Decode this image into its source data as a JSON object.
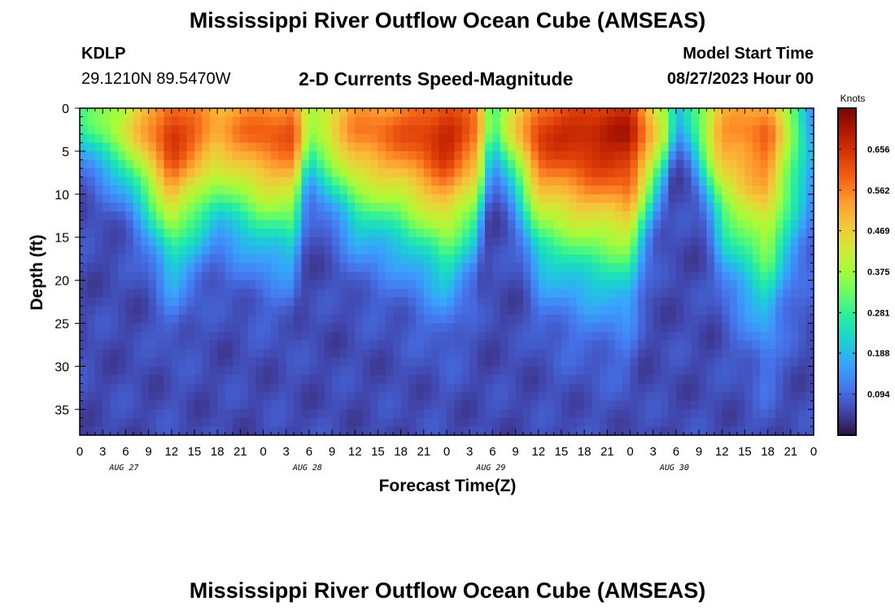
{
  "header": {
    "title": "Mississippi River Outflow Ocean Cube (AMSEAS)",
    "station": "KDLP",
    "location": "29.1210N  89.5470W",
    "product": "2-D Currents Speed-Magnitude",
    "model_label": "Model Start Time",
    "model_time": "08/27/2023 Hour 00"
  },
  "footer": {
    "title": "Mississippi River Outflow Ocean Cube (AMSEAS)"
  },
  "chart_data": {
    "type": "heatmap",
    "xlabel": "Forecast Time(Z)",
    "ylabel": "Depth (ft)",
    "x_tick_labels": [
      "0",
      "3",
      "6",
      "9",
      "12",
      "15",
      "18",
      "21",
      "0",
      "3",
      "6",
      "9",
      "12",
      "15",
      "18",
      "21",
      "0",
      "3",
      "6",
      "9",
      "12",
      "15",
      "18",
      "21",
      "0",
      "3",
      "6",
      "9",
      "12",
      "15",
      "18",
      "21",
      "0"
    ],
    "date_labels": [
      "AUG 27",
      "AUG 28",
      "AUG 29",
      "AUG 30"
    ],
    "x_range_hours": [
      0,
      96
    ],
    "y_ticks": [
      0,
      5,
      10,
      15,
      20,
      25,
      30,
      35
    ],
    "y_range": [
      0,
      38
    ],
    "colorbar": {
      "title": "Knots",
      "ticks": [
        "0.656",
        "0.562",
        "0.469",
        "0.375",
        "0.281",
        "0.188",
        "0.094"
      ],
      "range": [
        0,
        0.75
      ],
      "colors": [
        "#30123b",
        "#4145ab",
        "#4675ed",
        "#39a2fc",
        "#1bcfd4",
        "#24eca6",
        "#61fc6c",
        "#a4fc3b",
        "#d1e834",
        "#f3c63a",
        "#fe9b2d",
        "#f36315",
        "#d93806",
        "#b11901",
        "#7a0402"
      ]
    },
    "surface_speed_profile": {
      "hours": [
        0,
        6,
        12,
        18,
        24,
        28,
        30,
        36,
        42,
        48,
        52,
        54,
        60,
        66,
        72,
        77,
        78,
        84,
        90,
        96
      ],
      "values": [
        0.3,
        0.45,
        0.68,
        0.55,
        0.62,
        0.63,
        0.4,
        0.58,
        0.62,
        0.7,
        0.6,
        0.32,
        0.66,
        0.7,
        0.72,
        0.38,
        0.18,
        0.55,
        0.6,
        0.15
      ]
    },
    "grid": false
  }
}
